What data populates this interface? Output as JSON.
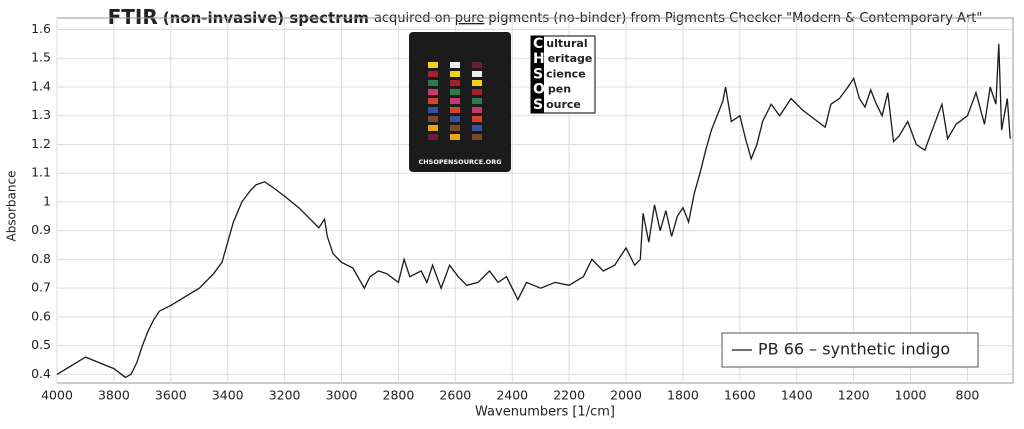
{
  "chart_data": {
    "type": "line",
    "title_parts": [
      "FTIR",
      "(non-invasive) spectrum",
      "acquired on",
      "pure",
      "pigments (no-binder) from Pigments Checker \"Modern & Contemporary Art\""
    ],
    "x_label": "Wavenumbers [1/cm]",
    "y_label": "Absorbance",
    "xlim": [
      4000,
      640
    ],
    "ylim": [
      0.37,
      1.64
    ],
    "xticks": [
      4000,
      3800,
      3600,
      3400,
      3200,
      3000,
      2800,
      2600,
      2400,
      2200,
      2000,
      1800,
      1600,
      1400,
      1200,
      1000,
      800
    ],
    "yticks": [
      0.4,
      0.5,
      0.6,
      0.7,
      0.8,
      0.9,
      1,
      1.1,
      1.2,
      1.3,
      1.4,
      1.5,
      1.6
    ],
    "grid": true,
    "legend": "lower right",
    "x": [
      4000,
      3950,
      3900,
      3850,
      3800,
      3760,
      3740,
      3720,
      3700,
      3680,
      3660,
      3640,
      3600,
      3550,
      3500,
      3450,
      3420,
      3400,
      3380,
      3350,
      3320,
      3300,
      3270,
      3240,
      3200,
      3150,
      3120,
      3100,
      3080,
      3060,
      3050,
      3030,
      3000,
      2960,
      2920,
      2900,
      2870,
      2840,
      2800,
      2780,
      2760,
      2720,
      2700,
      2680,
      2650,
      2620,
      2590,
      2560,
      2520,
      2480,
      2450,
      2420,
      2380,
      2350,
      2300,
      2250,
      2200,
      2150,
      2120,
      2080,
      2040,
      2000,
      1970,
      1950,
      1940,
      1920,
      1900,
      1880,
      1860,
      1840,
      1820,
      1800,
      1780,
      1760,
      1740,
      1720,
      1700,
      1680,
      1660,
      1650,
      1630,
      1600,
      1580,
      1560,
      1540,
      1520,
      1490,
      1460,
      1420,
      1380,
      1340,
      1300,
      1280,
      1250,
      1220,
      1200,
      1180,
      1160,
      1140,
      1120,
      1100,
      1080,
      1060,
      1040,
      1010,
      980,
      950,
      920,
      890,
      870,
      840,
      800,
      770,
      740,
      720,
      700,
      690,
      680,
      660,
      650
    ],
    "series": [
      {
        "name": "PB 66 – synthetic indigo",
        "color": "#1a1a1a",
        "values": [
          0.4,
          0.43,
          0.46,
          0.44,
          0.42,
          0.39,
          0.4,
          0.44,
          0.5,
          0.55,
          0.59,
          0.62,
          0.64,
          0.67,
          0.7,
          0.75,
          0.79,
          0.86,
          0.93,
          1.0,
          1.04,
          1.06,
          1.07,
          1.05,
          1.02,
          0.98,
          0.95,
          0.93,
          0.91,
          0.94,
          0.88,
          0.82,
          0.79,
          0.77,
          0.7,
          0.74,
          0.76,
          0.75,
          0.72,
          0.8,
          0.74,
          0.76,
          0.72,
          0.78,
          0.7,
          0.78,
          0.74,
          0.71,
          0.72,
          0.76,
          0.72,
          0.74,
          0.66,
          0.72,
          0.7,
          0.72,
          0.71,
          0.74,
          0.8,
          0.76,
          0.78,
          0.84,
          0.78,
          0.8,
          0.96,
          0.86,
          0.99,
          0.9,
          0.97,
          0.88,
          0.95,
          0.98,
          0.93,
          1.03,
          1.1,
          1.18,
          1.25,
          1.3,
          1.35,
          1.4,
          1.28,
          1.3,
          1.22,
          1.15,
          1.2,
          1.28,
          1.34,
          1.3,
          1.36,
          1.32,
          1.29,
          1.26,
          1.34,
          1.36,
          1.4,
          1.43,
          1.36,
          1.33,
          1.39,
          1.34,
          1.3,
          1.38,
          1.21,
          1.23,
          1.28,
          1.2,
          1.18,
          1.26,
          1.34,
          1.22,
          1.27,
          1.3,
          1.38,
          1.27,
          1.4,
          1.34,
          1.55,
          1.25,
          1.36,
          1.22
        ]
      }
    ],
    "logo": {
      "words": [
        "Cultural",
        "Heritage",
        "Science",
        "Open",
        "Source"
      ],
      "card_text": "CHSOPENSOURCE.ORG"
    }
  }
}
